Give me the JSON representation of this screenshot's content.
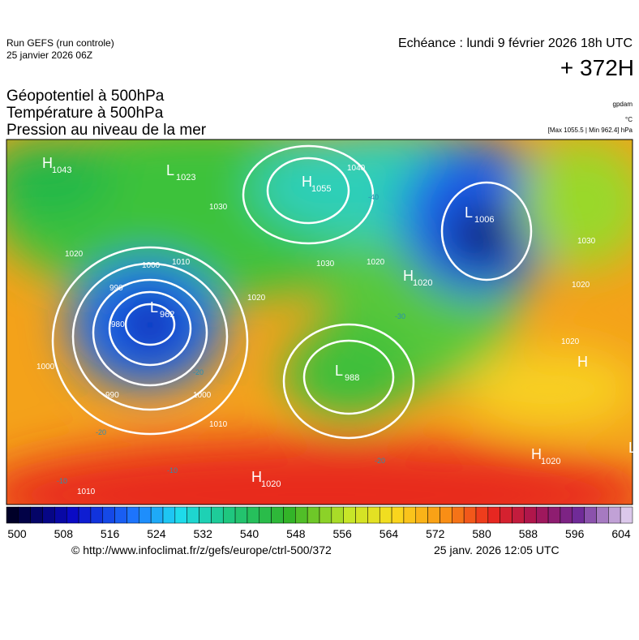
{
  "header": {
    "run": "Run GEFS (run controle)",
    "date": "25 janvier 2026 06Z",
    "echeance": "Echéance : lundi 9 février 2026 18h UTC",
    "lead": "+ 372H",
    "titles": [
      "Géopotentiel à 500hPa",
      "Température à 500hPa",
      "Pression au niveau de la mer"
    ],
    "units": [
      "gpdam",
      "°C"
    ],
    "maxmin": "[Max 1055.5 | Min 962.4] hPa"
  },
  "map": {
    "centers": [
      {
        "letter": "H",
        "value": "1043"
      },
      {
        "letter": "L",
        "value": "1023"
      },
      {
        "letter": "H",
        "value": "1055"
      },
      {
        "letter": "L",
        "value": "1006"
      },
      {
        "letter": "H",
        "value": "1020"
      },
      {
        "letter": "L",
        "value": "962"
      },
      {
        "letter": "L",
        "value": "988"
      },
      {
        "letter": "H",
        "value": "1020"
      },
      {
        "letter": "H",
        "value": "1020"
      },
      {
        "letter": "H"
      },
      {
        "letter": "L"
      }
    ],
    "isobar_labels": [
      "1020",
      "1030",
      "1000",
      "1010",
      "990",
      "980",
      "1000",
      "990",
      "1000",
      "1010",
      "1010",
      "1020",
      "1020",
      "1030",
      "1040",
      "1020",
      "1030",
      "1020"
    ],
    "temp_labels": [
      "-20",
      "-20",
      "-30",
      "-20",
      "-10",
      "-10",
      "-40"
    ]
  },
  "colorbar": {
    "ticks": [
      "500",
      "508",
      "516",
      "524",
      "532",
      "540",
      "548",
      "556",
      "564",
      "572",
      "580",
      "588",
      "596",
      "604"
    ]
  },
  "footer": {
    "url": "© http://www.infoclimat.fr/z/gefs/europe/ctrl-500/372",
    "timestamp": "25 janv. 2026 12:05 UTC"
  }
}
